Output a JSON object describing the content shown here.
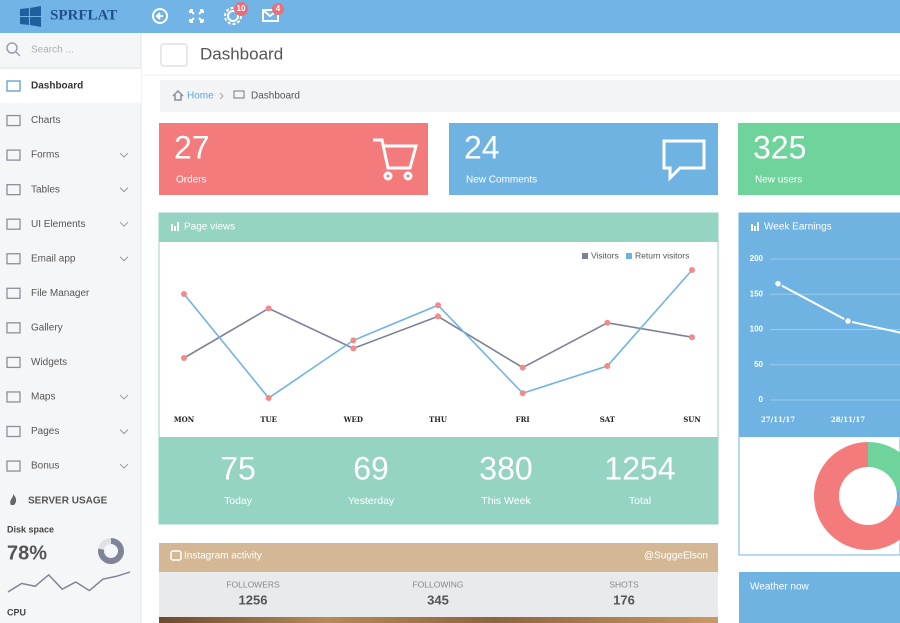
{
  "header": {
    "brand": "SPRFLAT",
    "badges": [
      "10",
      "4"
    ]
  },
  "sidebar": {
    "search": "Search ...",
    "menu": [
      {
        "label": "Dashboard",
        "submenu": false
      },
      {
        "label": "Charts",
        "submenu": false
      },
      {
        "label": "Forms",
        "submenu": true
      },
      {
        "label": "Tables",
        "submenu": true
      },
      {
        "label": "UI Elements",
        "submenu": true
      },
      {
        "label": "Email app",
        "submenu": true
      },
      {
        "label": "File Manager",
        "submenu": false
      },
      {
        "label": "Gallery",
        "submenu": false
      },
      {
        "label": "Widgets",
        "submenu": false
      },
      {
        "label": "Maps",
        "submenu": true
      },
      {
        "label": "Pages",
        "submenu": true
      },
      {
        "label": "Bonus",
        "submenu": true
      }
    ],
    "section": "SERVER USAGE",
    "disk": {
      "label": "Disk space",
      "value": 78,
      "value_label": "78%",
      "color": "#7f8596",
      "trend": [
        2,
        8,
        6,
        14,
        4,
        9,
        3,
        11,
        13,
        16
      ]
    },
    "cpu": {
      "label": "CPU"
    }
  },
  "page": {
    "title": "Dashboard",
    "breadcrumb": [
      "Home",
      "Dashboard"
    ]
  },
  "tiles": [
    {
      "value": 27,
      "label": "Orders",
      "color": "#f47b7b"
    },
    {
      "value": 24,
      "label": "New Comments",
      "color": "#6fb3e3"
    },
    {
      "value": 325,
      "label": "New users",
      "color": "#6fd49b"
    }
  ],
  "chart_data": [
    {
      "type": "line",
      "title": "Page views",
      "categories": [
        "MON",
        "TUE",
        "WED",
        "THU",
        "FRI",
        "SAT",
        "SUN"
      ],
      "point_color": "#f28a8a",
      "series": [
        {
          "name": "Visitors",
          "color": "#7d8196",
          "values": [
            33,
            64,
            39,
            59,
            27,
            55,
            46
          ]
        },
        {
          "name": "Return visitors",
          "color": "#6fb3e3",
          "values": [
            73,
            8,
            44,
            66,
            11,
            28,
            88
          ]
        }
      ]
    },
    {
      "type": "line",
      "title": "Week Earnings",
      "categories": [
        "27/11/17",
        "28/11/17",
        null
      ],
      "series": [
        {
          "color": "#ffffff",
          "values": [
            165,
            112,
            90
          ]
        }
      ],
      "ylim": [
        0,
        200
      ],
      "yticks": [
        0,
        50,
        100,
        150,
        200
      ],
      "grid": true
    },
    {
      "type": "donut",
      "values": [
        22,
        8,
        70
      ],
      "colors": [
        "#6fd49b",
        "#6fb3e3",
        "#f47b7b"
      ]
    }
  ],
  "summary": [
    {
      "value": 75,
      "label": "Today"
    },
    {
      "value": 69,
      "label": "Yesterday"
    },
    {
      "value": 380,
      "label": "This Week"
    },
    {
      "value": 1254,
      "label": "Total"
    }
  ],
  "instagram": {
    "title": "Instagram activity",
    "handle": "@SuggeElson",
    "stats": [
      {
        "label": "FOLLOWERS",
        "value": 1256
      },
      {
        "label": "FOLLOWING",
        "value": 345
      },
      {
        "label": "SHOTS",
        "value": 176
      }
    ]
  },
  "weather": {
    "title": "Weather now"
  }
}
